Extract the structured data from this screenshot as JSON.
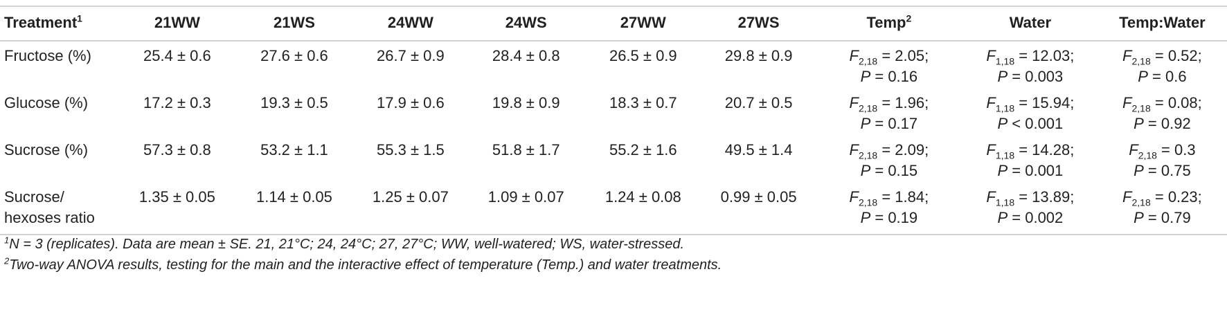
{
  "table": {
    "headers": {
      "treatment": "Treatment",
      "treatment_sup": "1",
      "c21ww": "21WW",
      "c21ws": "21WS",
      "c24ww": "24WW",
      "c24ws": "24WS",
      "c27ww": "27WW",
      "c27ws": "27WS",
      "temp": "Temp",
      "temp_sup": "2",
      "water": "Water",
      "tempwater": "Temp:Water"
    },
    "rows": [
      {
        "label1": "Fructose (%)",
        "label2": "",
        "v21ww": "25.4 ± 0.6",
        "v21ws": "27.6 ± 0.6",
        "v24ww": "26.7 ± 0.9",
        "v24ws": "28.4 ± 0.8",
        "v27ww": "26.5 ± 0.9",
        "v27ws": "29.8 ± 0.9",
        "temp_sub": "2,18",
        "temp_f": " = 2.05;",
        "temp_p": " = 0.16",
        "water_sub": "1,18",
        "water_f": " = 12.03;",
        "water_p": " = 0.003",
        "tw_sub": "2,18",
        "tw_f": " = 0.52;",
        "tw_p": " = 0.6"
      },
      {
        "label1": "Glucose (%)",
        "label2": "",
        "v21ww": "17.2 ± 0.3",
        "v21ws": "19.3 ± 0.5",
        "v24ww": "17.9 ± 0.6",
        "v24ws": "19.8 ± 0.9",
        "v27ww": "18.3 ± 0.7",
        "v27ws": "20.7 ± 0.5",
        "temp_sub": "2,18",
        "temp_f": " = 1.96;",
        "temp_p": " = 0.17",
        "water_sub": "1,18",
        "water_f": " = 15.94;",
        "water_p": " < 0.001",
        "tw_sub": "2,18",
        "tw_f": " = 0.08;",
        "tw_p": " = 0.92"
      },
      {
        "label1": "Sucrose (%)",
        "label2": "",
        "v21ww": "57.3 ± 0.8",
        "v21ws": "53.2 ± 1.1",
        "v24ww": "55.3 ± 1.5",
        "v24ws": "51.8 ± 1.7",
        "v27ww": "55.2 ± 1.6",
        "v27ws": "49.5 ± 1.4",
        "temp_sub": "2,18",
        "temp_f": " = 2.09;",
        "temp_p": " = 0.15",
        "water_sub": "1,18",
        "water_f": " = 14.28;",
        "water_p": " = 0.001",
        "tw_sub": "2,18",
        "tw_f": " = 0.3",
        "tw_p": " = 0.75"
      },
      {
        "label1": "Sucrose/",
        "label2": "hexoses ratio",
        "v21ww": "1.35 ± 0.05",
        "v21ws": "1.14 ± 0.05",
        "v24ww": "1.25 ± 0.07",
        "v24ws": "1.09 ± 0.07",
        "v27ww": "1.24 ± 0.08",
        "v27ws": "0.99 ± 0.05",
        "temp_sub": "2,18",
        "temp_f": " = 1.84;",
        "temp_p": " = 0.19",
        "water_sub": "1,18",
        "water_f": " = 13.89;",
        "water_p": " = 0.002",
        "tw_sub": "2,18",
        "tw_f": " = 0.23;",
        "tw_p": " = 0.79"
      }
    ],
    "symbols": {
      "F": "F",
      "P": "P"
    }
  },
  "footnotes": {
    "n1_sup": "1",
    "n1_text": "N = 3 (replicates). Data are mean ± SE. 21, 21°C; 24, 24°C; 27, 27°C; WW, well-watered; WS, water-stressed.",
    "n2_sup": "2",
    "n2_text": "Two-way ANOVA results, testing for the main and the interactive effect of temperature (Temp.) and water treatments."
  }
}
